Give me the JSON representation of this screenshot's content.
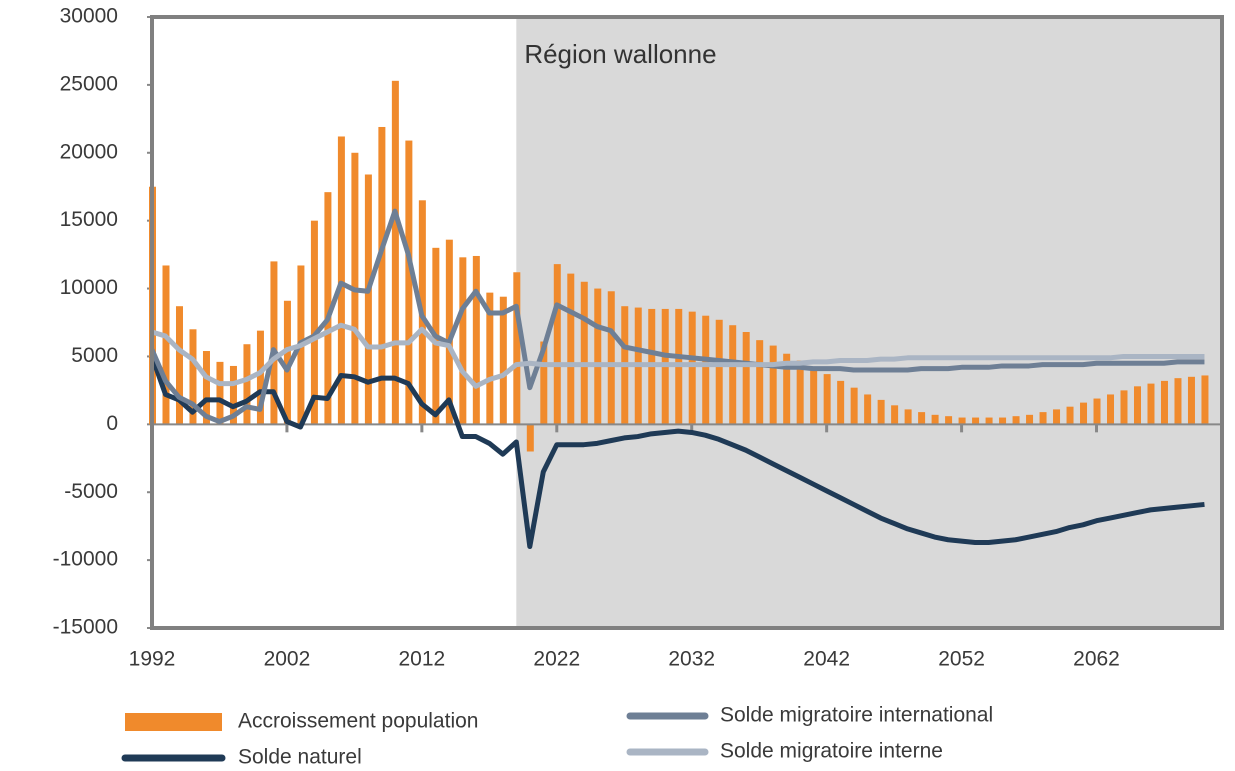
{
  "chart_data": {
    "type": "combo",
    "title": "Région wallonne",
    "x": [
      1992,
      1993,
      1994,
      1995,
      1996,
      1997,
      1998,
      1999,
      2000,
      2001,
      2002,
      2003,
      2004,
      2005,
      2006,
      2007,
      2008,
      2009,
      2010,
      2011,
      2012,
      2013,
      2014,
      2015,
      2016,
      2017,
      2018,
      2019,
      2020,
      2021,
      2022,
      2023,
      2024,
      2025,
      2026,
      2027,
      2028,
      2029,
      2030,
      2031,
      2032,
      2033,
      2034,
      2035,
      2036,
      2037,
      2038,
      2039,
      2040,
      2041,
      2042,
      2043,
      2044,
      2045,
      2046,
      2047,
      2048,
      2049,
      2050,
      2051,
      2052,
      2053,
      2054,
      2055,
      2056,
      2057,
      2058,
      2059,
      2060,
      2061,
      2062,
      2063,
      2064,
      2065,
      2066,
      2067,
      2068,
      2069,
      2070
    ],
    "series": [
      {
        "name": "Accroissement population",
        "type": "bar",
        "color": "#f08a2c",
        "values": [
          17500,
          11700,
          8700,
          7000,
          5400,
          4600,
          4300,
          5900,
          6900,
          12000,
          9100,
          11700,
          15000,
          17100,
          21200,
          20000,
          18400,
          21900,
          25300,
          20900,
          16500,
          13000,
          13600,
          12300,
          12400,
          9700,
          9400,
          11200,
          -2000,
          6100,
          11800,
          11100,
          10500,
          10000,
          9800,
          8700,
          8600,
          8500,
          8500,
          8500,
          8300,
          8000,
          7700,
          7300,
          6800,
          6200,
          5800,
          5200,
          4700,
          4200,
          3700,
          3200,
          2700,
          2200,
          1800,
          1400,
          1100,
          900,
          700,
          600,
          500,
          500,
          500,
          500,
          600,
          700,
          900,
          1100,
          1300,
          1600,
          1900,
          2200,
          2500,
          2800,
          3000,
          3200,
          3400,
          3500,
          3600
        ]
      },
      {
        "name": "Solde naturel",
        "type": "line",
        "color": "#1f3a56",
        "values": [
          5000,
          2200,
          1800,
          900,
          1800,
          1800,
          1300,
          1700,
          2400,
          2400,
          200,
          -200,
          2000,
          1900,
          3600,
          3500,
          3100,
          3400,
          3400,
          3000,
          1500,
          700,
          1800,
          -900,
          -900,
          -1400,
          -2200,
          -1300,
          -9000,
          -3500,
          -1500,
          -1500,
          -1500,
          -1400,
          -1200,
          -1000,
          -900,
          -700,
          -600,
          -500,
          -600,
          -800,
          -1100,
          -1500,
          -1900,
          -2400,
          -2900,
          -3400,
          -3900,
          -4400,
          -4900,
          -5400,
          -5900,
          -6400,
          -6900,
          -7300,
          -7700,
          -8000,
          -8300,
          -8500,
          -8600,
          -8700,
          -8700,
          -8600,
          -8500,
          -8300,
          -8100,
          -7900,
          -7600,
          -7400,
          -7100,
          -6900,
          -6700,
          -6500,
          -6300,
          -6200,
          -6100,
          -6000,
          -5900
        ]
      },
      {
        "name": "Solde migratoire international",
        "type": "line",
        "color": "#6e7f95",
        "values": [
          5500,
          3200,
          2000,
          1500,
          600,
          200,
          600,
          1300,
          1100,
          5500,
          4000,
          6000,
          6500,
          7700,
          10400,
          9900,
          9800,
          12800,
          15700,
          12500,
          8000,
          6500,
          6000,
          8500,
          9800,
          8200,
          8200,
          8700,
          2700,
          5500,
          8800,
          8300,
          7800,
          7200,
          6900,
          5700,
          5500,
          5300,
          5100,
          5000,
          4900,
          4800,
          4700,
          4600,
          4500,
          4400,
          4300,
          4200,
          4200,
          4100,
          4100,
          4100,
          4000,
          4000,
          4000,
          4000,
          4000,
          4100,
          4100,
          4100,
          4200,
          4200,
          4200,
          4300,
          4300,
          4300,
          4400,
          4400,
          4400,
          4400,
          4500,
          4500,
          4500,
          4500,
          4500,
          4500,
          4600,
          4600,
          4600
        ]
      },
      {
        "name": "Solde migratoire interne",
        "type": "line",
        "color": "#aab5c4",
        "values": [
          6800,
          6500,
          5500,
          4800,
          3500,
          3000,
          3000,
          3300,
          3800,
          4800,
          5500,
          5800,
          6300,
          6800,
          7300,
          7000,
          5700,
          5700,
          6000,
          6000,
          7000,
          6000,
          5800,
          3900,
          2800,
          3300,
          3600,
          4400,
          4500,
          4400,
          4400,
          4400,
          4400,
          4400,
          4400,
          4400,
          4400,
          4400,
          4400,
          4400,
          4400,
          4400,
          4400,
          4400,
          4400,
          4400,
          4400,
          4500,
          4500,
          4600,
          4600,
          4700,
          4700,
          4700,
          4800,
          4800,
          4900,
          4900,
          4900,
          4900,
          4900,
          4900,
          4900,
          4900,
          4900,
          4900,
          4900,
          4900,
          4900,
          4900,
          4900,
          4900,
          5000,
          5000,
          5000,
          5000,
          5000,
          5000,
          5000
        ]
      }
    ],
    "xlim": [
      1992,
      2071.3
    ],
    "xticks": [
      1992,
      2002,
      2012,
      2022,
      2032,
      2042,
      2052,
      2062
    ],
    "ylim": [
      -15000,
      30000
    ],
    "yticks": [
      30000,
      25000,
      20000,
      15000,
      10000,
      5000,
      0,
      -5000,
      -10000,
      -15000
    ],
    "shade_xlim": [
      2019,
      2071.3
    ],
    "shade_color": "#d9d9d9"
  }
}
